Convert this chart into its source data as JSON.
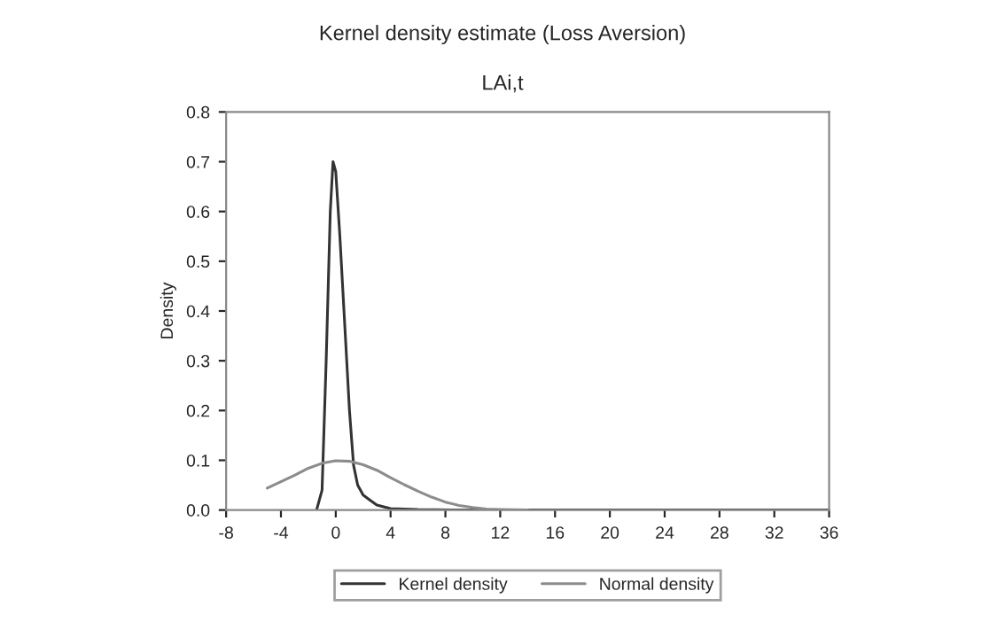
{
  "chart_data": {
    "type": "line",
    "title": "Kernel density estimate (Loss Aversion)",
    "subtitle": "LAi,t",
    "ylabel": "Density",
    "xlim": [
      -8,
      36
    ],
    "xticks": [
      -8,
      -4,
      0,
      4,
      8,
      12,
      16,
      20,
      24,
      28,
      32,
      36
    ],
    "ylim": [
      0,
      0.8
    ],
    "yticks": [
      {
        "value": 0,
        "label": "0.0"
      },
      0.1,
      0.2,
      0.3,
      0.4,
      0.5,
      0.6,
      0.7,
      0.8
    ],
    "legend": "bottom",
    "grid": false,
    "series": [
      {
        "name": "Kernel density",
        "color": "#333333",
        "x": [
          -1.4,
          -1,
          -0.7,
          -0.4,
          -0.2,
          0,
          0.3,
          0.6,
          1,
          1.3,
          1.6,
          2,
          2.5,
          3,
          4,
          6,
          10,
          20,
          36
        ],
        "values": [
          0,
          0.04,
          0.3,
          0.6,
          0.7,
          0.68,
          0.55,
          0.4,
          0.2,
          0.09,
          0.05,
          0.03,
          0.02,
          0.01,
          0.003,
          0.001,
          0,
          0,
          0
        ]
      },
      {
        "name": "Normal density",
        "color": "#8c8c8c",
        "x": [
          -5,
          -4,
          -3,
          -2,
          -1,
          0,
          1,
          2,
          3,
          4,
          5,
          6,
          7,
          8,
          9,
          10,
          11,
          12,
          14
        ],
        "values": [
          0.044,
          0.057,
          0.07,
          0.084,
          0.094,
          0.099,
          0.098,
          0.091,
          0.08,
          0.065,
          0.051,
          0.038,
          0.026,
          0.016,
          0.009,
          0.005,
          0.002,
          0.001,
          0.0
        ]
      }
    ]
  }
}
